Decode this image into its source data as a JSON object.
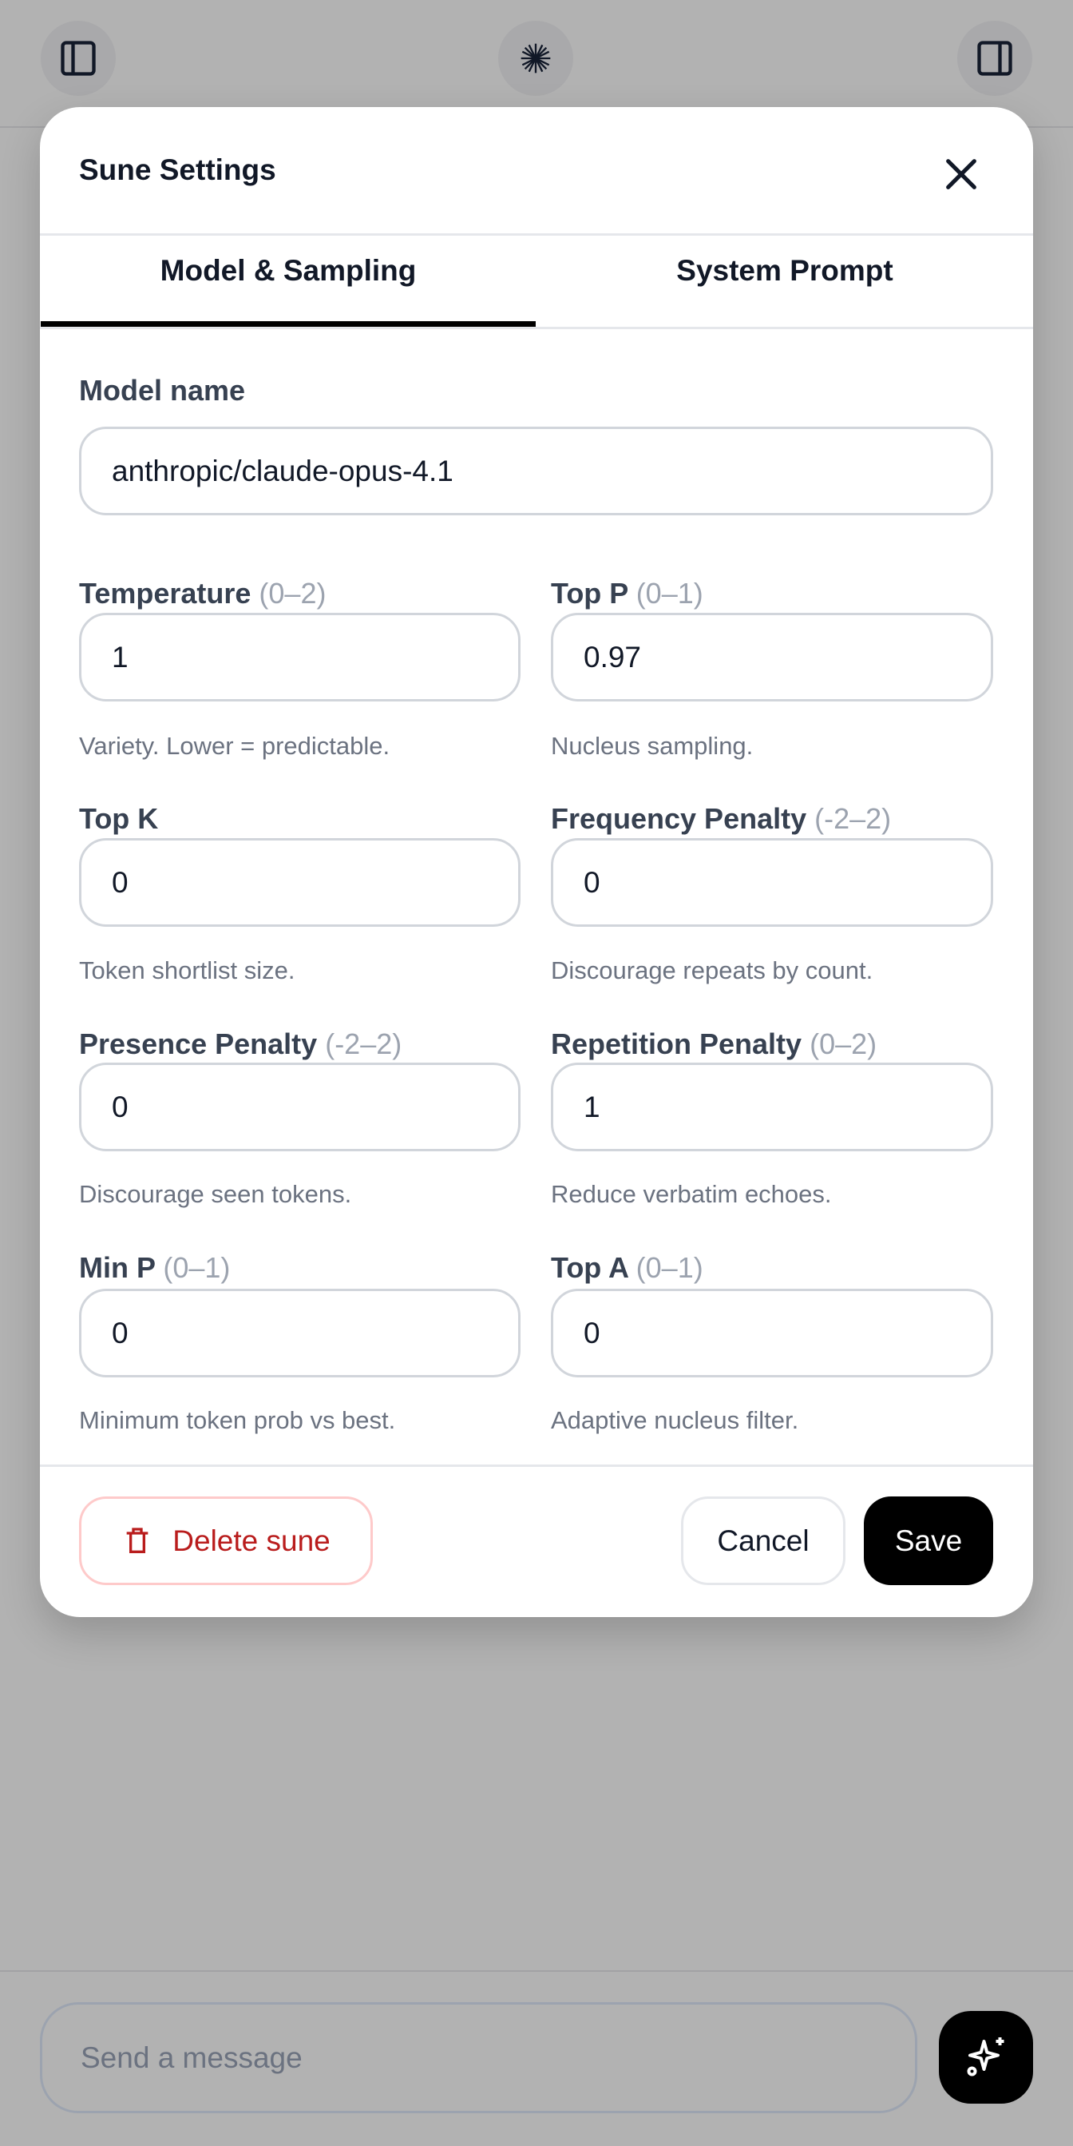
{
  "topbar": {
    "left_icon": "sidebar-left-icon",
    "center_icon": "sparkle-burst-icon",
    "right_icon": "sidebar-right-icon"
  },
  "modal": {
    "title": "Sune Settings",
    "close_icon": "close-icon",
    "tabs": [
      {
        "label": "Model & Sampling",
        "active": true
      },
      {
        "label": "System Prompt",
        "active": false
      }
    ],
    "model_name": {
      "label": "Model name",
      "value": "anthropic/claude-opus-4.1"
    },
    "fields": [
      {
        "label": "Temperature",
        "range": "(0–2)",
        "value": "1",
        "help": "Variety. Lower = predictable."
      },
      {
        "label": "Top P",
        "range": "(0–1)",
        "value": "0.97",
        "help": "Nucleus sampling."
      },
      {
        "label": "Top K",
        "range": "",
        "value": "0",
        "help": "Token shortlist size."
      },
      {
        "label": "Frequency Penalty",
        "range": "(-2–2)",
        "value": "0",
        "help": "Discourage repeats by count."
      },
      {
        "label": "Presence Penalty",
        "range": "(-2–2)",
        "value": "0",
        "help": "Discourage seen tokens."
      },
      {
        "label": "Repetition Penalty",
        "range": "(0–2)",
        "value": "1",
        "help": "Reduce verbatim echoes."
      },
      {
        "label": "Min P",
        "range": "(0–1)",
        "value": "0",
        "help": "Minimum token prob vs best."
      },
      {
        "label": "Top A",
        "range": "(0–1)",
        "value": "0",
        "help": "Adaptive nucleus filter."
      }
    ],
    "footer": {
      "delete_label": "Delete sune",
      "cancel_label": "Cancel",
      "save_label": "Save"
    }
  },
  "composer": {
    "placeholder": "Send a message",
    "send_icon": "sparkles-icon"
  },
  "colors": {
    "danger": "#b91c1c",
    "primary": "#000000",
    "overlay": "#b2b2b2"
  }
}
